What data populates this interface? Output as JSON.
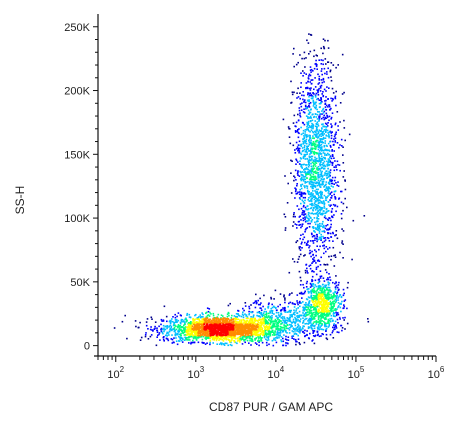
{
  "chart_data": {
    "type": "scatter",
    "title": "",
    "xlabel": "CD87 PUR / GAM APC",
    "ylabel": "SS-H",
    "x_scale": "log",
    "y_scale": "linear",
    "xlim": [
      60,
      1000000
    ],
    "ylim": [
      -5000,
      260000
    ],
    "x_ticks": [
      {
        "value": 100,
        "base": "10",
        "exp": "2"
      },
      {
        "value": 1000,
        "base": "10",
        "exp": "3"
      },
      {
        "value": 10000,
        "base": "10",
        "exp": "4"
      },
      {
        "value": 100000,
        "base": "10",
        "exp": "5"
      },
      {
        "value": 1000000,
        "base": "10",
        "exp": "6"
      }
    ],
    "y_ticks": [
      {
        "value": 0,
        "label": "0"
      },
      {
        "value": 50000,
        "label": "50K"
      },
      {
        "value": 100000,
        "label": "100K"
      },
      {
        "value": 150000,
        "label": "150K"
      },
      {
        "value": 200000,
        "label": "200K"
      },
      {
        "value": 250000,
        "label": "250K"
      }
    ],
    "grid": false,
    "colormap": "density (blue-green-yellow-red)",
    "populations": [
      {
        "x_center": 2000,
        "y_center": 13000,
        "x_spread_log": 0.35,
        "y_spread": 5000,
        "weight": 0.42
      },
      {
        "x_center": 32000,
        "y_center": 140000,
        "x_spread_log": 0.14,
        "y_spread": 42000,
        "weight": 0.33
      },
      {
        "x_center": 38000,
        "y_center": 32000,
        "x_spread_log": 0.13,
        "y_spread": 10000,
        "weight": 0.13
      },
      {
        "x_center": 12000,
        "y_center": 18000,
        "x_spread_log": 0.3,
        "y_spread": 9000,
        "weight": 0.12
      }
    ],
    "colors": [
      "#00008b",
      "#0000ff",
      "#00bfff",
      "#00ff80",
      "#ffff00",
      "#ff8c00",
      "#ff0000"
    ]
  }
}
